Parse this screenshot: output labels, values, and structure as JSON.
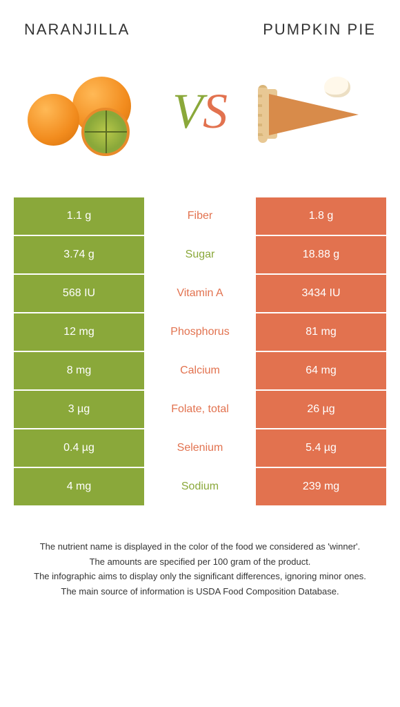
{
  "titles": {
    "left": "NARANJILLA",
    "right": "PUMPKIN PIE"
  },
  "vs": {
    "v": "V",
    "s": "S"
  },
  "colors": {
    "left": "#8aa83a",
    "right": "#e2724f"
  },
  "rows": [
    {
      "left": "1.1 g",
      "label": "Fiber",
      "right": "1.8 g",
      "winner": "right"
    },
    {
      "left": "3.74 g",
      "label": "Sugar",
      "right": "18.88 g",
      "winner": "left"
    },
    {
      "left": "568 IU",
      "label": "Vitamin A",
      "right": "3434 IU",
      "winner": "right"
    },
    {
      "left": "12 mg",
      "label": "Phosphorus",
      "right": "81 mg",
      "winner": "right"
    },
    {
      "left": "8 mg",
      "label": "Calcium",
      "right": "64 mg",
      "winner": "right"
    },
    {
      "left": "3 µg",
      "label": "Folate, total",
      "right": "26 µg",
      "winner": "right"
    },
    {
      "left": "0.4 µg",
      "label": "Selenium",
      "right": "5.4 µg",
      "winner": "right"
    },
    {
      "left": "4 mg",
      "label": "Sodium",
      "right": "239 mg",
      "winner": "left"
    }
  ],
  "footer": [
    "The nutrient name is displayed in the color of the food we considered as 'winner'.",
    "The amounts are specified per 100 gram of the product.",
    "The infographic aims to display only the significant differences, ignoring minor ones.",
    "The main source of information is USDA Food Composition Database."
  ]
}
